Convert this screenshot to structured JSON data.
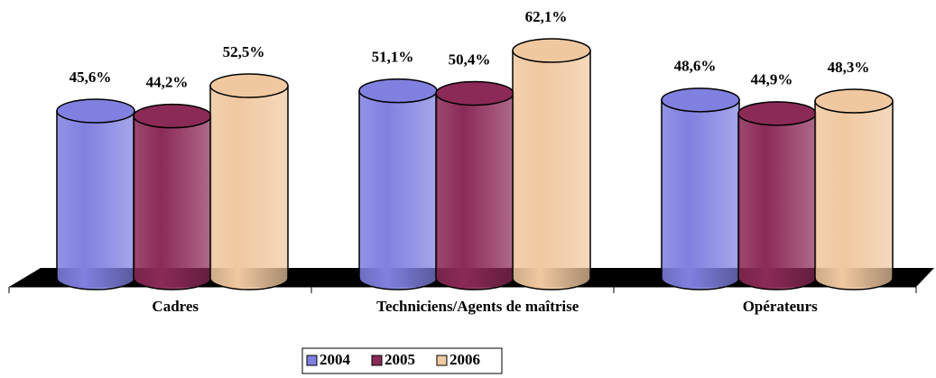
{
  "chart_data": {
    "type": "bar",
    "categories": [
      "Cadres",
      "Techniciens/Agents de maîtrise",
      "Opérateurs"
    ],
    "series": [
      {
        "name": "2004",
        "color": "#8080e0",
        "values": [
          45.6,
          51.1,
          48.6
        ],
        "value_labels": [
          "45,6%",
          "51,1%",
          "48,6%"
        ]
      },
      {
        "name": "2005",
        "color": "#8b2a57",
        "values": [
          44.2,
          50.4,
          44.9
        ],
        "value_labels": [
          "44,2%",
          "50,4%",
          "44,9%"
        ]
      },
      {
        "name": "2006",
        "color": "#f0c8a0",
        "values": [
          52.5,
          62.1,
          48.3
        ],
        "value_labels": [
          "52,5%",
          "62,1%",
          "48,3%"
        ]
      }
    ],
    "ylim": [
      0,
      70
    ],
    "legend": "bottom"
  }
}
